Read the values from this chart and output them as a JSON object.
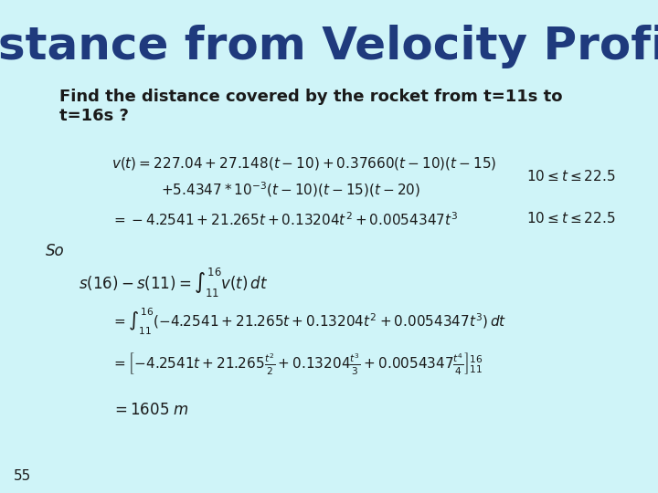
{
  "background_color": "#cff4f8",
  "title": "Distance from Velocity Profile",
  "title_color": "#1f3a7d",
  "title_fontsize": 36,
  "subtitle": "Find the distance covered by the rocket from t=11s to\nt=16s ?",
  "subtitle_fontsize": 13,
  "subtitle_color": "#1a1a1a",
  "eq1a": "$v(t) = 227.04 + 27.148(t-10) + 0.37660(t-10)(t-15)$",
  "eq1b": "$+ 5.4347 * 10^{-3}(t-10)(t-15)(t-20)$",
  "eq1_cond": "$10 \\leq t \\leq 22.5$",
  "eq2": "$= -4.2541 + 21.265t + 0.13204t^2 + 0.0054347t^3$",
  "eq2_cond": "$10 \\leq t \\leq 22.5$",
  "so_label": "So",
  "eq3": "$s(16) - s(11) = \\int_{11}^{16} v(t)\\,dt$",
  "eq4": "$= \\int_{11}^{16} (-4.2541 + 21.265t + 0.13204t^2 + 0.0054347t^3)\\,dt$",
  "eq5": "$= \\left[-4.2541t + 21.265\\frac{t^2}{2} + 0.13204\\frac{t^3}{3} + 0.0054347\\frac{t^4}{4}\\right]_{11}^{16}$",
  "eq6": "$= 1605\\; m$",
  "slide_number": "55",
  "math_color": "#1a1a1a",
  "math_fontsize": 11
}
